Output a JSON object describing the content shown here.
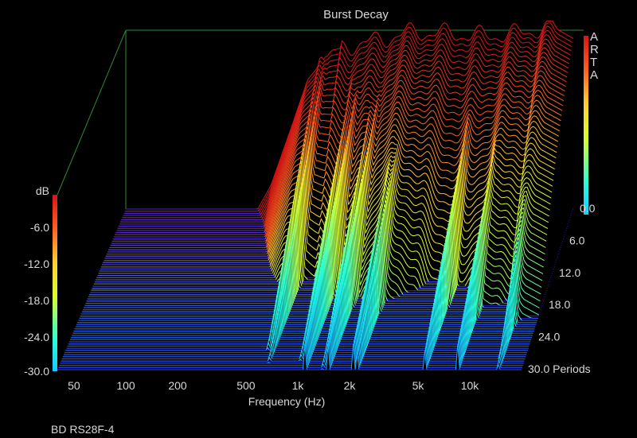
{
  "chart_data": {
    "type": "waterfall",
    "title": "Burst Decay",
    "xlabel": "Frequency (Hz)",
    "zlabel_unit": "Periods",
    "ylabel_unit": "dB",
    "x_scale": "log",
    "xlim": [
      40,
      20000
    ],
    "x_ticks": [
      50,
      100,
      200,
      500,
      1000,
      2000,
      5000,
      10000
    ],
    "x_tick_labels": [
      "50",
      "100",
      "200",
      "500",
      "1k",
      "2k",
      "5k",
      "10k"
    ],
    "ylim": [
      -30,
      0
    ],
    "y_tick_labels": [
      "dB",
      "-6.0",
      "-12.0",
      "-18.0",
      "-24.0",
      "-30.0"
    ],
    "z_ticks": [
      0,
      6,
      12,
      18,
      24,
      30
    ],
    "z_tick_labels": [
      "0.0",
      "6.0",
      "12.0",
      "18.0",
      "24.0",
      "30.0 Periods"
    ],
    "brand": [
      "A",
      "R",
      "T",
      "A"
    ],
    "footer": "BD RS28F-4",
    "slices": 76,
    "colors": {
      "background": "#000000",
      "frame": "#2f8a2f",
      "text": "#d8d8d8"
    },
    "colormap": [
      "#1a10ff",
      "#18c8ff",
      "#28ffd8",
      "#d8ff30",
      "#ffd030",
      "#ff5a20",
      "#d81414"
    ],
    "response_db": {
      "freq_hz": [
        40,
        250,
        300,
        400,
        500,
        700,
        1000,
        1500,
        2000,
        3000,
        5000,
        7000,
        10000,
        15000,
        20000
      ],
      "level_db": [
        -30,
        -30,
        -26,
        -16,
        -8,
        -3,
        -2,
        -1,
        0,
        0,
        -0.5,
        -0.5,
        0,
        1,
        -1
      ]
    },
    "resonances_hz": [
      600,
      650,
      1000,
      1100,
      1400,
      1500,
      2100,
      2200,
      5500,
      8500,
      14500
    ]
  }
}
